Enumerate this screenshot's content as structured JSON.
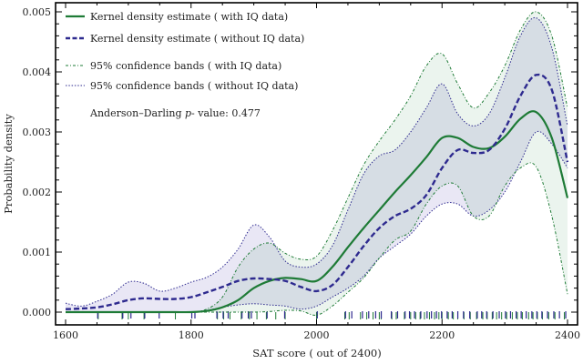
{
  "chart_data": {
    "type": "line",
    "title": "",
    "xlabel": "SAT score ( out of 2400)",
    "ylabel": "Probability density",
    "xlim": [
      1585,
      2415
    ],
    "ylim": [
      -0.0002,
      0.0052
    ],
    "xticks": [
      1600,
      1800,
      2000,
      2200,
      2400
    ],
    "xtick_labels": [
      "1600",
      "1800",
      "2000",
      "2200",
      "2400"
    ],
    "yticks": [
      0,
      0.001,
      0.002,
      0.003,
      0.004,
      0.005
    ],
    "ytick_labels": [
      "0.000",
      "0.001",
      "0.002",
      "0.003",
      "0.004",
      "0.005"
    ],
    "grid": false,
    "legend_position": "top-left",
    "annotation": {
      "prefix": "Anderson–Darling ",
      "italic": "p",
      "suffix": "- value: 0.477"
    },
    "colors": {
      "with_iq": "#1e7b36",
      "without_iq": "#2e2a8f",
      "band_with_fill": "#e4f0e8",
      "band_without_fill": "#e7e4f4",
      "band_overlap_fill": "#d4dbe2"
    },
    "x": [
      1600,
      1625,
      1650,
      1675,
      1700,
      1725,
      1750,
      1775,
      1800,
      1825,
      1850,
      1875,
      1900,
      1925,
      1950,
      1975,
      2000,
      2025,
      2050,
      2075,
      2100,
      2125,
      2150,
      2175,
      2200,
      2225,
      2250,
      2275,
      2300,
      2325,
      2350,
      2375,
      2400
    ],
    "series": [
      {
        "name": "Kernel density estimate ( with IQ data)",
        "style": "solid",
        "values": [
          0.0,
          0.0,
          0.0,
          0.0,
          0.0,
          0.0,
          0.0,
          0.0,
          0.0,
          2e-05,
          8e-05,
          0.0002,
          0.0004,
          0.00052,
          0.00057,
          0.00055,
          0.00052,
          0.00075,
          0.00108,
          0.0014,
          0.0017,
          0.002,
          0.00228,
          0.00258,
          0.0029,
          0.0029,
          0.00275,
          0.00273,
          0.00292,
          0.00322,
          0.00333,
          0.0029,
          0.0019
        ]
      },
      {
        "name": "Kernel density estimate ( without IQ data)",
        "style": "dashed",
        "values": [
          5e-05,
          6e-05,
          8e-05,
          0.00013,
          0.0002,
          0.00023,
          0.00022,
          0.00022,
          0.00025,
          0.00033,
          0.00042,
          0.00052,
          0.00056,
          0.00055,
          0.00052,
          0.00042,
          0.00035,
          0.00045,
          0.00075,
          0.0011,
          0.0014,
          0.0016,
          0.00172,
          0.00195,
          0.0024,
          0.0027,
          0.00265,
          0.0027,
          0.00305,
          0.0036,
          0.00395,
          0.0037,
          0.0025
        ]
      },
      {
        "name": "95% confidence bands ( with IQ data)",
        "style": "dash-dot",
        "upper": [
          0.0,
          0.0,
          0.0,
          0.0,
          0.0,
          0.0,
          0.0,
          0.0,
          0.0,
          5e-05,
          0.00025,
          0.00075,
          0.00105,
          0.00115,
          0.00098,
          0.00088,
          0.00093,
          0.00135,
          0.0019,
          0.00245,
          0.00285,
          0.0032,
          0.0036,
          0.0041,
          0.0043,
          0.0038,
          0.0034,
          0.00365,
          0.0041,
          0.0047,
          0.005,
          0.0046,
          0.0034
        ],
        "lower": [
          0.0,
          0.0,
          0.0,
          0.0,
          0.0,
          0.0,
          0.0,
          0.0,
          0.0,
          0.0,
          0.0,
          0.0,
          0.0,
          1e-05,
          3e-05,
          2e-05,
          -5e-05,
          0.0001,
          0.00033,
          0.00057,
          0.0009,
          0.0012,
          0.00135,
          0.0018,
          0.0021,
          0.0021,
          0.0016,
          0.0016,
          0.0021,
          0.0024,
          0.00242,
          0.0016,
          0.0003
        ]
      },
      {
        "name": "95% confidence bands ( without IQ data)",
        "style": "dotted",
        "upper": [
          0.00015,
          0.0001,
          0.00018,
          0.0003,
          0.0005,
          0.00048,
          0.00035,
          0.0004,
          0.0005,
          0.00058,
          0.00075,
          0.00105,
          0.00145,
          0.00125,
          0.00085,
          0.00075,
          0.0008,
          0.0011,
          0.0017,
          0.0023,
          0.0026,
          0.0027,
          0.003,
          0.0034,
          0.0038,
          0.0033,
          0.0031,
          0.0033,
          0.0039,
          0.0046,
          0.0049,
          0.0044,
          0.0031
        ],
        "lower": [
          0.0,
          0.0,
          0.0,
          0.0,
          0.0,
          0.0,
          0.0,
          0.0,
          0.0,
          3e-05,
          8e-05,
          0.00012,
          0.00014,
          0.00012,
          0.0001,
          5e-05,
          0.0001,
          0.00025,
          0.0004,
          0.0006,
          0.0009,
          0.0011,
          0.0013,
          0.0016,
          0.0018,
          0.0018,
          0.0016,
          0.0017,
          0.002,
          0.0025,
          0.003,
          0.0028,
          0.0024
        ]
      }
    ],
    "rug": {
      "with_iq": [
        1652,
        1690,
        1700,
        1725,
        1775,
        1842,
        1852,
        1862,
        1880,
        1893,
        1905,
        1920,
        1935,
        1950,
        2000,
        2045,
        2052,
        2070,
        2080,
        2090,
        2100,
        2103,
        2120,
        2127,
        2140,
        2150,
        2158,
        2165,
        2172,
        2180,
        2188,
        2195,
        2200,
        2210,
        2218,
        2225,
        2235,
        2245,
        2255,
        2265,
        2272,
        2280,
        2287,
        2295,
        2303,
        2312,
        2320,
        2328,
        2338,
        2345,
        2352,
        2360,
        2370,
        2380,
        2395
      ],
      "without_iq": [
        1650,
        1690,
        1703,
        1725,
        1748,
        1800,
        1805,
        1840,
        1850,
        1858,
        1880,
        1890,
        1895,
        1920,
        1948,
        2000,
        2045,
        2055,
        2072,
        2082,
        2093,
        2102,
        2118,
        2128,
        2140,
        2147,
        2155,
        2165,
        2175,
        2182,
        2190,
        2198,
        2207,
        2215,
        2224,
        2233,
        2243,
        2255,
        2262,
        2270,
        2280,
        2290,
        2300,
        2308,
        2317,
        2325,
        2333,
        2342,
        2350,
        2358,
        2367,
        2377,
        2386,
        2396
      ]
    }
  }
}
